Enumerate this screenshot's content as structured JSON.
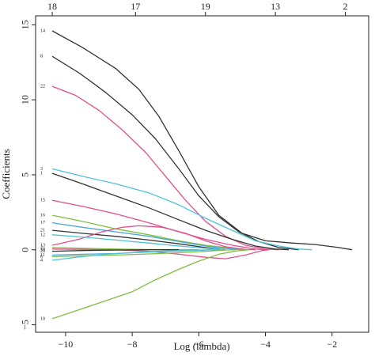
{
  "chart_data": {
    "type": "line",
    "title": "",
    "xlabel": "Log (lambda)",
    "ylabel": "Coefficients",
    "xlim": [
      -10.9,
      -0.9
    ],
    "ylim": [
      -5.5,
      15.6
    ],
    "x_ticks": [
      -10,
      -8,
      -6,
      -4,
      -2
    ],
    "x_tick_labels": [
      "−10",
      "−8",
      "−6",
      "−4",
      "−2"
    ],
    "y_ticks": [
      -5,
      0,
      5,
      10,
      15
    ],
    "y_tick_labels": [
      "−5",
      "0",
      "5",
      "10",
      "15"
    ],
    "top_ticks": [
      {
        "x": -10.4,
        "label": "18"
      },
      {
        "x": -7.9,
        "label": "17"
      },
      {
        "x": -5.8,
        "label": "19"
      },
      {
        "x": -3.7,
        "label": "13"
      },
      {
        "x": -1.6,
        "label": "2"
      }
    ],
    "grid": false,
    "series": [
      {
        "label": "14",
        "color": "#333333",
        "points": [
          [
            -10.4,
            14.6
          ],
          [
            -9.5,
            13.5
          ],
          [
            -8.5,
            12.1
          ],
          [
            -7.8,
            10.7
          ],
          [
            -7.2,
            8.9
          ],
          [
            -6.6,
            6.6
          ],
          [
            -6.0,
            4.2
          ],
          [
            -5.4,
            2.3
          ],
          [
            -4.7,
            1.1
          ],
          [
            -4.0,
            0.6
          ],
          [
            -3.2,
            0.45
          ],
          [
            -2.5,
            0.35
          ],
          [
            -1.8,
            0.15
          ],
          [
            -1.4,
            0
          ]
        ]
      },
      {
        "label": "8",
        "color": "#333333",
        "points": [
          [
            -10.4,
            12.9
          ],
          [
            -9.6,
            11.8
          ],
          [
            -8.8,
            10.5
          ],
          [
            -8.0,
            9.0
          ],
          [
            -7.3,
            7.4
          ],
          [
            -6.6,
            5.4
          ],
          [
            -6.0,
            3.6
          ],
          [
            -5.4,
            2.2
          ],
          [
            -4.8,
            1.2
          ],
          [
            -4.2,
            0.55
          ],
          [
            -3.6,
            0.15
          ],
          [
            -3.0,
            0
          ]
        ]
      },
      {
        "label": "22",
        "color": "#e0508a",
        "points": [
          [
            -10.4,
            10.9
          ],
          [
            -9.7,
            10.3
          ],
          [
            -9.0,
            9.3
          ],
          [
            -8.3,
            8.0
          ],
          [
            -7.6,
            6.5
          ],
          [
            -7.0,
            4.9
          ],
          [
            -6.4,
            3.3
          ],
          [
            -5.8,
            1.9
          ],
          [
            -5.2,
            0.9
          ],
          [
            -4.6,
            0.3
          ],
          [
            -4.0,
            0.05
          ],
          [
            -3.6,
            0
          ]
        ]
      },
      {
        "label": "3",
        "color": "#4dc4d6",
        "points": [
          [
            -10.4,
            5.4
          ],
          [
            -9.5,
            4.9
          ],
          [
            -8.5,
            4.4
          ],
          [
            -7.5,
            3.8
          ],
          [
            -6.6,
            3.0
          ],
          [
            -5.8,
            2.1
          ],
          [
            -5.0,
            1.3
          ],
          [
            -4.3,
            0.6
          ],
          [
            -3.6,
            0.25
          ],
          [
            -3.0,
            0.05
          ],
          [
            -2.6,
            0
          ]
        ]
      },
      {
        "label": "1",
        "color": "#333333",
        "points": [
          [
            -10.4,
            5.1
          ],
          [
            -9.5,
            4.4
          ],
          [
            -8.5,
            3.6
          ],
          [
            -7.5,
            2.8
          ],
          [
            -6.6,
            2.0
          ],
          [
            -5.8,
            1.3
          ],
          [
            -5.0,
            0.7
          ],
          [
            -4.3,
            0.25
          ],
          [
            -3.7,
            0.05
          ],
          [
            -3.3,
            0
          ]
        ]
      },
      {
        "label": "15",
        "color": "#e0508a",
        "points": [
          [
            -10.4,
            3.3
          ],
          [
            -9.5,
            2.9
          ],
          [
            -8.5,
            2.4
          ],
          [
            -7.5,
            1.8
          ],
          [
            -6.6,
            1.2
          ],
          [
            -5.8,
            0.7
          ],
          [
            -5.0,
            0.3
          ],
          [
            -4.3,
            0.05
          ],
          [
            -4.0,
            0
          ]
        ]
      },
      {
        "label": "16",
        "color": "#7fbf3f",
        "points": [
          [
            -10.4,
            2.3
          ],
          [
            -9.5,
            1.9
          ],
          [
            -8.5,
            1.4
          ],
          [
            -7.5,
            1.0
          ],
          [
            -6.6,
            0.6
          ],
          [
            -5.8,
            0.3
          ],
          [
            -5.0,
            0.1
          ],
          [
            -4.5,
            0
          ]
        ]
      },
      {
        "label": "17",
        "color": "#4aa8d8",
        "points": [
          [
            -10.4,
            1.8
          ],
          [
            -9.5,
            1.5
          ],
          [
            -8.5,
            1.2
          ],
          [
            -7.5,
            0.9
          ],
          [
            -6.6,
            0.55
          ],
          [
            -5.8,
            0.25
          ],
          [
            -5.0,
            0.05
          ],
          [
            -4.6,
            0
          ]
        ]
      },
      {
        "label": "21",
        "color": "#333333",
        "points": [
          [
            -10.4,
            1.3
          ],
          [
            -9.5,
            1.1
          ],
          [
            -8.5,
            0.9
          ],
          [
            -7.5,
            0.65
          ],
          [
            -6.6,
            0.4
          ],
          [
            -5.8,
            0.15
          ],
          [
            -5.2,
            0
          ]
        ]
      },
      {
        "label": "13",
        "color": "#e0508a",
        "points": [
          [
            -10.4,
            0.3
          ],
          [
            -9.6,
            0.7
          ],
          [
            -8.9,
            1.2
          ],
          [
            -8.3,
            1.5
          ],
          [
            -7.8,
            1.6
          ],
          [
            -7.1,
            1.5
          ],
          [
            -6.4,
            1.1
          ],
          [
            -5.8,
            0.6
          ],
          [
            -5.2,
            0.2
          ],
          [
            -4.6,
            0.02
          ],
          [
            -4.3,
            0
          ]
        ]
      },
      {
        "label": "12",
        "color": "#4dc4d6",
        "points": [
          [
            -10.4,
            1.0
          ],
          [
            -9.5,
            0.85
          ],
          [
            -8.5,
            0.65
          ],
          [
            -7.5,
            0.45
          ],
          [
            -6.6,
            0.25
          ],
          [
            -5.8,
            0.1
          ],
          [
            -5.2,
            0
          ]
        ]
      },
      {
        "label": "2",
        "color": "#7fbf3f",
        "points": [
          [
            -10.4,
            0.15
          ],
          [
            -9.5,
            0.1
          ],
          [
            -8.5,
            0.05
          ],
          [
            -7.5,
            0.02
          ],
          [
            -6.6,
            0.01
          ],
          [
            -6.0,
            0
          ]
        ]
      },
      {
        "label": "18",
        "color": "#e0508a",
        "points": [
          [
            -10.4,
            0.05
          ],
          [
            -9.5,
            0.03
          ],
          [
            -8.5,
            0.0
          ],
          [
            -7.5,
            -0.1
          ],
          [
            -6.6,
            -0.3
          ],
          [
            -5.8,
            -0.5
          ],
          [
            -5.2,
            -0.6
          ],
          [
            -4.6,
            -0.35
          ],
          [
            -4.1,
            -0.05
          ],
          [
            -3.9,
            0
          ]
        ]
      },
      {
        "label": "20",
        "color": "#333333",
        "points": [
          [
            -10.4,
            -0.1
          ],
          [
            -9.5,
            -0.05
          ],
          [
            -8.5,
            -0.02
          ],
          [
            -7.5,
            0
          ],
          [
            -6.6,
            0
          ]
        ]
      },
      {
        "label": "11",
        "color": "#4aa8d8",
        "points": [
          [
            -10.4,
            -0.35
          ],
          [
            -9.5,
            -0.3
          ],
          [
            -8.5,
            -0.25
          ],
          [
            -7.5,
            -0.15
          ],
          [
            -6.6,
            -0.08
          ],
          [
            -5.8,
            -0.02
          ],
          [
            -5.4,
            0
          ]
        ]
      },
      {
        "label": "6",
        "color": "#7fbf3f",
        "points": [
          [
            -10.4,
            -0.45
          ],
          [
            -9.5,
            -0.4
          ],
          [
            -8.5,
            -0.35
          ],
          [
            -7.5,
            -0.28
          ],
          [
            -6.6,
            -0.2
          ],
          [
            -5.8,
            -0.1
          ],
          [
            -5.2,
            -0.02
          ],
          [
            -4.9,
            0
          ]
        ]
      },
      {
        "label": "4",
        "color": "#4dc4d6",
        "points": [
          [
            -10.4,
            -0.7
          ],
          [
            -9.5,
            -0.45
          ],
          [
            -8.5,
            -0.25
          ],
          [
            -7.5,
            -0.12
          ],
          [
            -6.6,
            -0.05
          ],
          [
            -5.8,
            -0.01
          ],
          [
            -5.4,
            0
          ]
        ]
      },
      {
        "label": "10",
        "color": "#7fbf3f",
        "points": [
          [
            -10.4,
            -4.6
          ],
          [
            -9.6,
            -4.0
          ],
          [
            -8.8,
            -3.4
          ],
          [
            -8.0,
            -2.8
          ],
          [
            -7.3,
            -2.0
          ],
          [
            -6.6,
            -1.3
          ],
          [
            -6.0,
            -0.75
          ],
          [
            -5.4,
            -0.3
          ],
          [
            -4.9,
            -0.08
          ],
          [
            -4.5,
            0
          ]
        ]
      }
    ]
  }
}
